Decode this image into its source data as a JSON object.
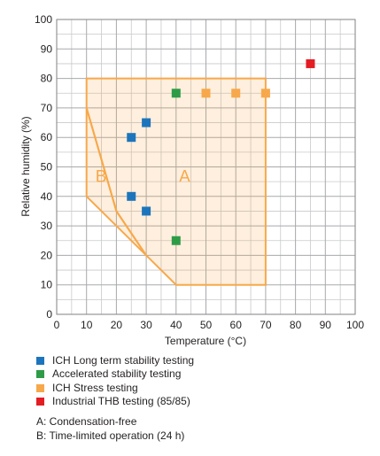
{
  "chart_data": {
    "type": "scatter",
    "xlabel": "Temperature (°C)",
    "ylabel": "Relative humidity (%)",
    "xlim": [
      0,
      100
    ],
    "ylim": [
      0,
      100
    ],
    "x_ticks": [
      "0",
      "10",
      "20",
      "30",
      "40",
      "50",
      "60",
      "70",
      "80",
      "90",
      "100"
    ],
    "y_ticks": [
      "0",
      "10",
      "20",
      "30",
      "40",
      "50",
      "60",
      "70",
      "80",
      "90",
      "100"
    ],
    "grid": true,
    "minor_grid_step": 5,
    "series": [
      {
        "name": "ICH Long term stability testing",
        "color": "#1c75bc",
        "points": [
          [
            25,
            60
          ],
          [
            30,
            65
          ],
          [
            25,
            40
          ],
          [
            30,
            35
          ]
        ]
      },
      {
        "name": "Accelerated stability testing",
        "color": "#2e9c47",
        "points": [
          [
            40,
            75
          ],
          [
            40,
            25
          ]
        ]
      },
      {
        "name": "ICH Stress testing",
        "color": "#f7a84a",
        "points": [
          [
            50,
            75
          ],
          [
            60,
            75
          ],
          [
            70,
            75
          ]
        ]
      },
      {
        "name": "Industrial THB testing (85/85)",
        "color": "#e31d23",
        "points": [
          [
            85,
            85
          ]
        ]
      }
    ],
    "regions": [
      {
        "label": "A",
        "label_at": [
          41,
          47
        ],
        "color": "#f7a84a",
        "polygon": [
          [
            10,
            80
          ],
          [
            70,
            80
          ],
          [
            70,
            10
          ],
          [
            40,
            10
          ],
          [
            30,
            20
          ],
          [
            20,
            35
          ],
          [
            10,
            70
          ]
        ]
      },
      {
        "label": "B",
        "label_at": [
          13,
          47
        ],
        "color": "#f7a84a",
        "polygon": [
          [
            10,
            70
          ],
          [
            20,
            35
          ],
          [
            30,
            20
          ],
          [
            20,
            30
          ],
          [
            10,
            40
          ]
        ]
      }
    ]
  },
  "legend": [
    {
      "label": "ICH Long term stability testing",
      "color": "#1c75bc"
    },
    {
      "label": "Accelerated stability testing",
      "color": "#2e9c47"
    },
    {
      "label": "ICH Stress testing",
      "color": "#f7a84a"
    },
    {
      "label": "Industrial THB testing (85/85)",
      "color": "#e31d23"
    }
  ],
  "notes": [
    "A: Condensation-free",
    "B: Time-limited operation (24 h)"
  ]
}
